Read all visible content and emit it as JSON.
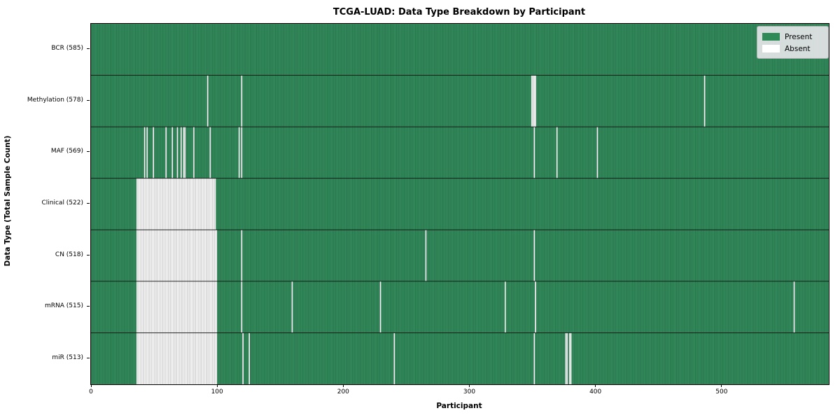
{
  "chart_data": {
    "type": "heatmap",
    "title": "TCGA-LUAD: Data Type Breakdown by Participant",
    "xlabel": "Participant",
    "ylabel": "Data Type (Total Sample Count)",
    "x_axis_range": [
      0,
      585
    ],
    "x_ticks": [
      0,
      100,
      200,
      300,
      400,
      500
    ],
    "legend_position": "upper right",
    "legend": [
      {
        "label": "Present",
        "color": "#2E8B57"
      },
      {
        "label": "Absent",
        "color": "#FFFFFF"
      }
    ],
    "colors": {
      "present": "#2E8B57",
      "present_edge": "#1F5F3F",
      "present_light": "#3E9568",
      "absent": "#FFFFFF",
      "absent_edge": "#9B9B9B",
      "row_separator": "#111111"
    },
    "rows": [
      {
        "label": "BCR (585)",
        "total": 585,
        "absent": []
      },
      {
        "label": "Methylation (578)",
        "total": 578,
        "absent": [
          92,
          119,
          349,
          350,
          351,
          352,
          486
        ]
      },
      {
        "label": "MAF (569)",
        "total": 569,
        "absent": [
          42,
          44,
          49,
          59,
          64,
          68,
          71,
          73,
          74,
          81,
          94,
          117,
          119,
          351,
          369,
          401
        ]
      },
      {
        "label": "Clinical (522)",
        "total": 522,
        "absent": [
          {
            "from": 36,
            "to": 98
          }
        ]
      },
      {
        "label": "CN (518)",
        "total": 518,
        "absent": [
          {
            "from": 36,
            "to": 99
          },
          119,
          265,
          351
        ]
      },
      {
        "label": "mRNA (515)",
        "total": 515,
        "absent": [
          {
            "from": 36,
            "to": 99
          },
          119,
          159,
          229,
          328,
          352,
          557
        ]
      },
      {
        "label": "miR (513)",
        "total": 513,
        "absent": [
          {
            "from": 36,
            "to": 99
          },
          120,
          125,
          240,
          351,
          376,
          377,
          379,
          380
        ]
      }
    ]
  }
}
